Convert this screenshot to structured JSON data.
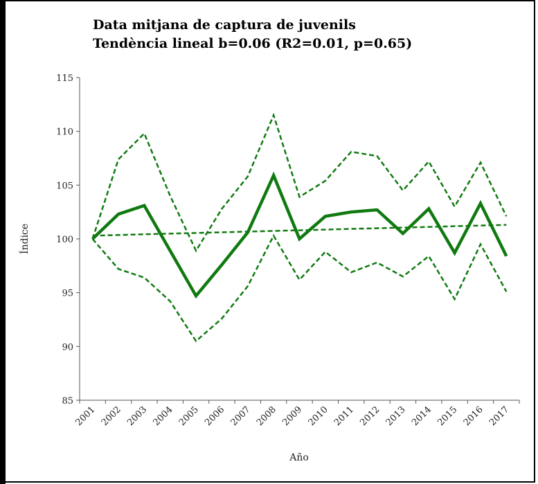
{
  "chart_data": {
    "type": "line",
    "title": "Data mitjana de captura de juvenils",
    "subtitle": "Tendència lineal b=0.06 (R2=0.01, p=0.65)",
    "x_label": "Año",
    "y_label": "Índice",
    "categories": [
      "2001",
      "2002",
      "2003",
      "2004",
      "2005",
      "2006",
      "2007",
      "2008",
      "2009",
      "2010",
      "2011",
      "2012",
      "2013",
      "2014",
      "2015",
      "2016",
      "2017"
    ],
    "series": [
      {
        "color": "#107a10",
        "style": "solid",
        "width": 4.5,
        "values": [
          100,
          102.3,
          103.1,
          98.9,
          94.7,
          97.6,
          100.6,
          105.9,
          100,
          102.1,
          102.5,
          102.7,
          100.5,
          102.8,
          98.7,
          103.3,
          98.4
        ]
      },
      {
        "color": "#107a10",
        "style": "dashed",
        "width": 2.5,
        "values": [
          100,
          107.4,
          109.8,
          104,
          98.9,
          102.8,
          105.8,
          111.5,
          103.9,
          105.4,
          108.1,
          107.7,
          104.5,
          107.2,
          103,
          107.1,
          102.1
        ]
      },
      {
        "color": "#107a10",
        "style": "dashed",
        "width": 2.5,
        "values": [
          100,
          97.2,
          96.4,
          94.2,
          90.5,
          92.6,
          95.6,
          100.3,
          96.2,
          98.8,
          96.9,
          97.8,
          96.5,
          98.4,
          94.4,
          99.5,
          95.1
        ]
      },
      {
        "color": "#107a10",
        "style": "dashed",
        "width": 2.5,
        "values": [
          100.3,
          100.36,
          100.43,
          100.49,
          100.55,
          100.61,
          100.68,
          100.74,
          100.8,
          100.86,
          100.93,
          100.99,
          101.05,
          101.11,
          101.18,
          101.24,
          101.3
        ]
      }
    ],
    "ylim": [
      85,
      115
    ],
    "yticks": [
      85,
      90,
      95,
      100,
      105,
      110,
      115
    ],
    "grid": false
  }
}
